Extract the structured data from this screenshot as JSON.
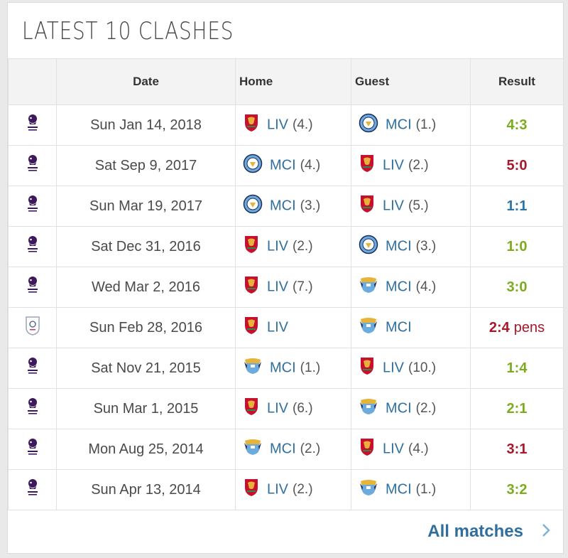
{
  "title": "LATEST 10 CLASHES",
  "columns": {
    "comp": "",
    "date": "Date",
    "home": "Home",
    "guest": "Guest",
    "result": "Result"
  },
  "colors": {
    "win": "#7cab1e",
    "loss": "#a8172a",
    "draw": "#2a74a8",
    "link": "#2f6f9e"
  },
  "matches": [
    {
      "comp_icon": "premier-league-icon",
      "date": "Sun Jan 14, 2018",
      "home": {
        "icon": "liv-crest-icon",
        "abbr": "LIV",
        "pos": "(4.)"
      },
      "guest": {
        "icon": "mci-crest-icon",
        "abbr": "MCI",
        "pos": "(1.)"
      },
      "score": "4:3",
      "extra": "",
      "color": "#7cab1e"
    },
    {
      "comp_icon": "premier-league-icon",
      "date": "Sat Sep 9, 2017",
      "home": {
        "icon": "mci-crest-icon",
        "abbr": "MCI",
        "pos": "(4.)"
      },
      "guest": {
        "icon": "liv-crest-icon",
        "abbr": "LIV",
        "pos": "(2.)"
      },
      "score": "5:0",
      "extra": "",
      "color": "#a8172a"
    },
    {
      "comp_icon": "premier-league-icon",
      "date": "Sun Mar 19, 2017",
      "home": {
        "icon": "mci-crest-icon",
        "abbr": "MCI",
        "pos": "(3.)"
      },
      "guest": {
        "icon": "liv-crest-icon",
        "abbr": "LIV",
        "pos": "(5.)"
      },
      "score": "1:1",
      "extra": "",
      "color": "#2a74a8"
    },
    {
      "comp_icon": "premier-league-icon",
      "date": "Sat Dec 31, 2016",
      "home": {
        "icon": "liv-crest-icon",
        "abbr": "LIV",
        "pos": "(2.)"
      },
      "guest": {
        "icon": "mci-crest-icon",
        "abbr": "MCI",
        "pos": "(3.)"
      },
      "score": "1:0",
      "extra": "",
      "color": "#7cab1e"
    },
    {
      "comp_icon": "premier-league-icon",
      "date": "Wed Mar 2, 2016",
      "home": {
        "icon": "liv-crest-icon",
        "abbr": "LIV",
        "pos": "(7.)"
      },
      "guest": {
        "icon": "mci-old-crest-icon",
        "abbr": "MCI",
        "pos": "(4.)"
      },
      "score": "3:0",
      "extra": "",
      "color": "#7cab1e"
    },
    {
      "comp_icon": "league-cup-icon",
      "date": "Sun Feb 28, 2016",
      "home": {
        "icon": "liv-crest-icon",
        "abbr": "LIV",
        "pos": ""
      },
      "guest": {
        "icon": "mci-old-crest-icon",
        "abbr": "MCI",
        "pos": ""
      },
      "score": "2:4",
      "extra": "pens",
      "color": "#a8172a"
    },
    {
      "comp_icon": "premier-league-icon",
      "date": "Sat Nov 21, 2015",
      "home": {
        "icon": "mci-old-crest-icon",
        "abbr": "MCI",
        "pos": "(1.)"
      },
      "guest": {
        "icon": "liv-crest-icon",
        "abbr": "LIV",
        "pos": "(10.)"
      },
      "score": "1:4",
      "extra": "",
      "color": "#7cab1e"
    },
    {
      "comp_icon": "premier-league-icon",
      "date": "Sun Mar 1, 2015",
      "home": {
        "icon": "liv-crest-icon",
        "abbr": "LIV",
        "pos": "(6.)"
      },
      "guest": {
        "icon": "mci-old-crest-icon",
        "abbr": "MCI",
        "pos": "(2.)"
      },
      "score": "2:1",
      "extra": "",
      "color": "#7cab1e"
    },
    {
      "comp_icon": "premier-league-icon",
      "date": "Mon Aug 25, 2014",
      "home": {
        "icon": "mci-old-crest-icon",
        "abbr": "MCI",
        "pos": "(2.)"
      },
      "guest": {
        "icon": "liv-crest-icon",
        "abbr": "LIV",
        "pos": "(4.)"
      },
      "score": "3:1",
      "extra": "",
      "color": "#a8172a"
    },
    {
      "comp_icon": "premier-league-icon",
      "date": "Sun Apr 13, 2014",
      "home": {
        "icon": "liv-crest-icon",
        "abbr": "LIV",
        "pos": "(2.)"
      },
      "guest": {
        "icon": "mci-old-crest-icon",
        "abbr": "MCI",
        "pos": "(1.)"
      },
      "score": "3:2",
      "extra": "",
      "color": "#7cab1e"
    }
  ],
  "footer": {
    "link_label": "All matches",
    "chevron_icon": "chevron-right-icon"
  }
}
